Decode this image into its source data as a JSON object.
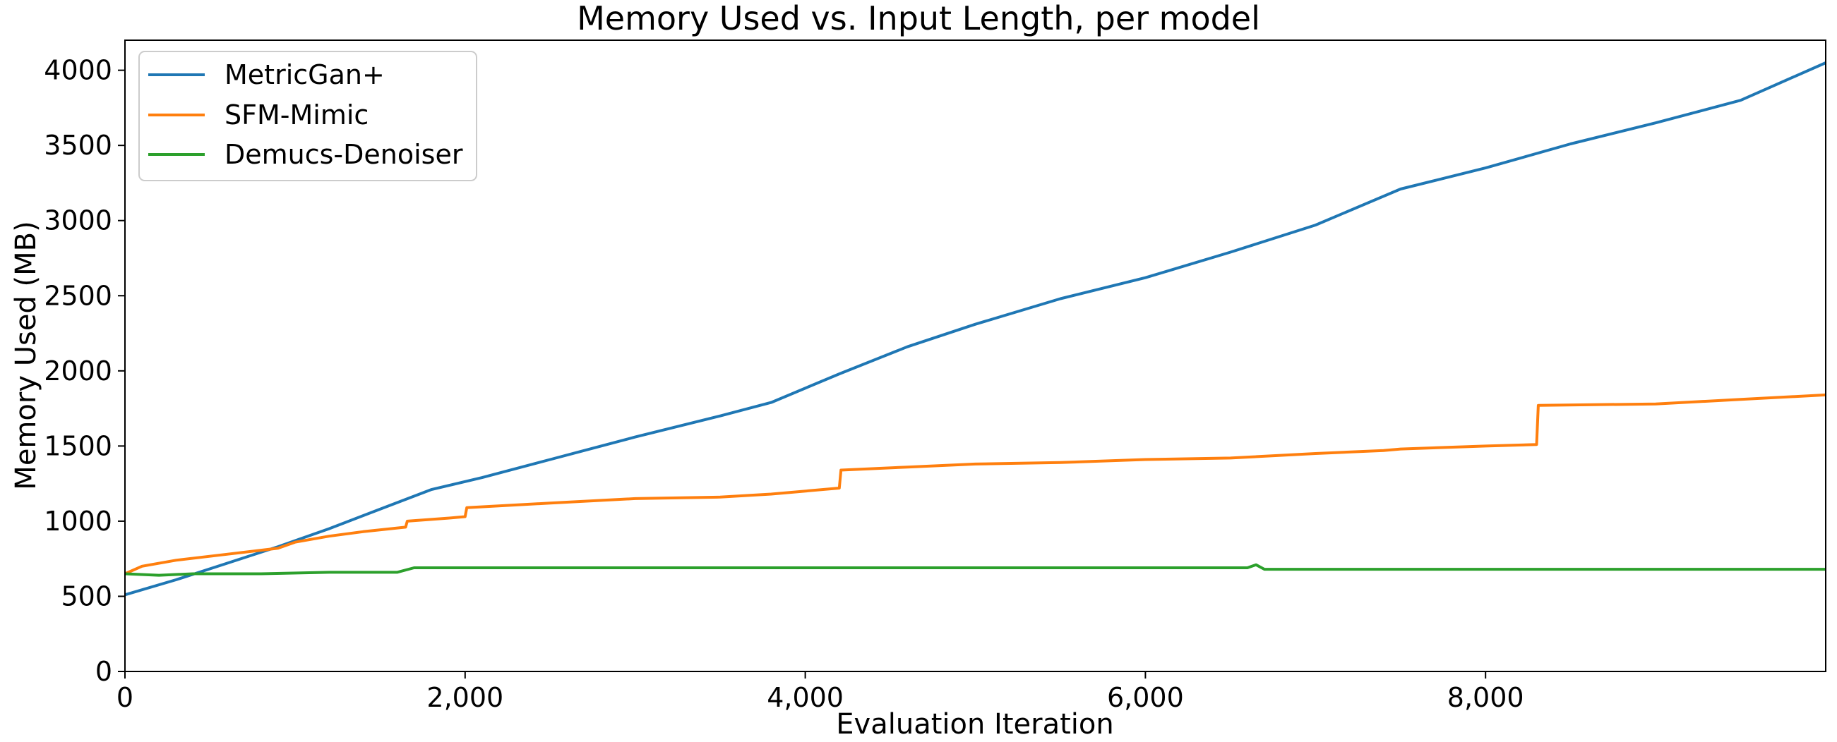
{
  "chart_data": {
    "type": "line",
    "title": "Memory Used vs. Input Length, per model",
    "xlabel": "Evaluation Iteration",
    "ylabel": "Memory Used (MB)",
    "xlim": [
      0,
      10000
    ],
    "ylim": [
      0,
      4200
    ],
    "xticks": [
      0,
      2000,
      4000,
      6000,
      8000
    ],
    "xtick_labels": [
      "0",
      "2,000",
      "4,000",
      "6,000",
      "8,000"
    ],
    "yticks": [
      0,
      500,
      1000,
      1500,
      2000,
      2500,
      3000,
      3500,
      4000
    ],
    "ytick_labels": [
      "0",
      "500",
      "1000",
      "1500",
      "2000",
      "2500",
      "3000",
      "3500",
      "4000"
    ],
    "grid": false,
    "legend_position": "top-left",
    "series": [
      {
        "name": "MetricGan+",
        "color": "#1f77b4",
        "x": [
          0,
          300,
          600,
          900,
          1200,
          1500,
          1800,
          2100,
          2500,
          3000,
          3500,
          3800,
          4200,
          4600,
          5000,
          5500,
          6000,
          6500,
          7000,
          7500,
          8000,
          8500,
          9000,
          9500,
          10000
        ],
        "y": [
          510,
          610,
          720,
          830,
          950,
          1080,
          1210,
          1290,
          1410,
          1560,
          1700,
          1790,
          1980,
          2160,
          2310,
          2480,
          2620,
          2790,
          2970,
          3210,
          3350,
          3510,
          3650,
          3800,
          4050
        ]
      },
      {
        "name": "SFM-Mimic",
        "color": "#ff7f0e",
        "x": [
          0,
          100,
          300,
          600,
          900,
          1000,
          1200,
          1400,
          1650,
          1660,
          1900,
          2000,
          2010,
          2500,
          3000,
          3500,
          3800,
          4200,
          4210,
          4600,
          5000,
          5500,
          6000,
          6500,
          7000,
          7400,
          7500,
          8000,
          8300,
          8310,
          9000,
          9500,
          10000
        ],
        "y": [
          650,
          700,
          740,
          780,
          820,
          860,
          900,
          930,
          960,
          1000,
          1020,
          1030,
          1090,
          1120,
          1150,
          1160,
          1180,
          1220,
          1340,
          1360,
          1380,
          1390,
          1410,
          1420,
          1450,
          1470,
          1480,
          1500,
          1510,
          1770,
          1780,
          1810,
          1840
        ]
      },
      {
        "name": "Demucs-Denoiser",
        "color": "#2ca02c",
        "x": [
          0,
          200,
          400,
          800,
          1200,
          1600,
          1700,
          1800,
          2500,
          3500,
          4500,
          5000,
          6000,
          6600,
          6650,
          6700,
          7000,
          8000,
          9000,
          10000
        ],
        "y": [
          650,
          640,
          650,
          650,
          660,
          660,
          690,
          690,
          690,
          690,
          690,
          690,
          690,
          690,
          710,
          680,
          680,
          680,
          680,
          680
        ]
      }
    ]
  }
}
